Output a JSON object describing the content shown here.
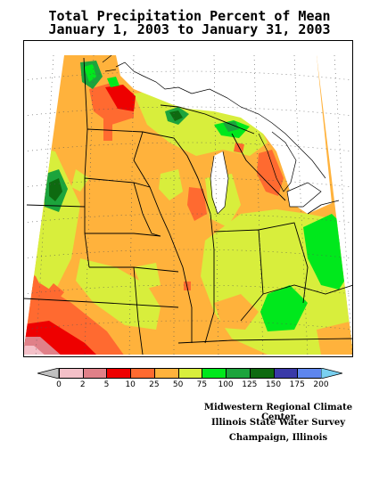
{
  "title": {
    "line1": "Total Precipitation Percent of Mean",
    "line2": "January 1, 2003 to January 31, 2003"
  },
  "legend": {
    "bins": [
      {
        "color": "#c0c0c0"
      },
      {
        "color": "#f4c0c8"
      },
      {
        "color": "#e08088"
      },
      {
        "color": "#ee0000"
      },
      {
        "color": "#ff6a30"
      },
      {
        "color": "#ffb23c"
      },
      {
        "color": "#d8ee3c"
      },
      {
        "color": "#00e81c"
      },
      {
        "color": "#1ca43c"
      },
      {
        "color": "#0e6a10"
      },
      {
        "color": "#3a3aa8"
      },
      {
        "color": "#5e86ee"
      },
      {
        "color": "#7ad0f0"
      }
    ],
    "labels": [
      "0",
      "2",
      "5",
      "10",
      "25",
      "50",
      "75",
      "100",
      "125",
      "150",
      "175",
      "200"
    ]
  },
  "credits": {
    "line1": "Midwestern Regional Climate Center",
    "line2": "Illinois State Water Survey",
    "line3": "Champaign, Illinois"
  },
  "colors": {
    "orange": "#ffb23c",
    "yellowgreen": "#d8ee3c",
    "green": "#00e81c",
    "darkgreen": "#0e6a10",
    "red": "#ee0000",
    "redorange": "#ff6a30",
    "pink": "#f4c0c8",
    "rose": "#e08088"
  }
}
